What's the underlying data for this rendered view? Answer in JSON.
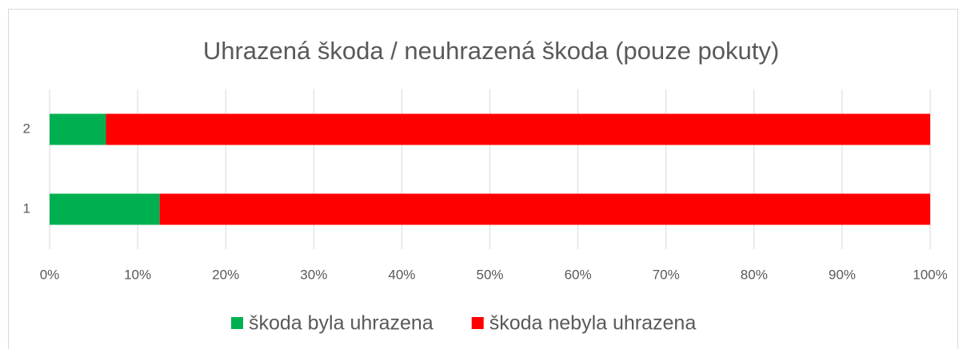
{
  "chart_data": {
    "type": "stacked_barh",
    "title": "Uhrazená škoda / neuhrazená škoda (pouze pokuty)",
    "categories": [
      "1",
      "2"
    ],
    "series": [
      {
        "name": "škoda byla uhrazena",
        "color": "#00b050",
        "values": [
          12.5,
          6.4
        ]
      },
      {
        "name": "škoda nebyla uhrazena",
        "color": "#ff0000",
        "values": [
          87.5,
          93.6
        ]
      }
    ],
    "xlim": [
      0,
      100
    ],
    "xticks": [
      {
        "value": 0,
        "label": "0%"
      },
      {
        "value": 10,
        "label": "10%"
      },
      {
        "value": 20,
        "label": "20%"
      },
      {
        "value": 30,
        "label": "30%"
      },
      {
        "value": 40,
        "label": "40%"
      },
      {
        "value": 50,
        "label": "50%"
      },
      {
        "value": 60,
        "label": "60%"
      },
      {
        "value": 70,
        "label": "70%"
      },
      {
        "value": 80,
        "label": "80%"
      },
      {
        "value": 90,
        "label": "90%"
      },
      {
        "value": 100,
        "label": "100%"
      }
    ],
    "grid": true,
    "legend": "bottom"
  }
}
